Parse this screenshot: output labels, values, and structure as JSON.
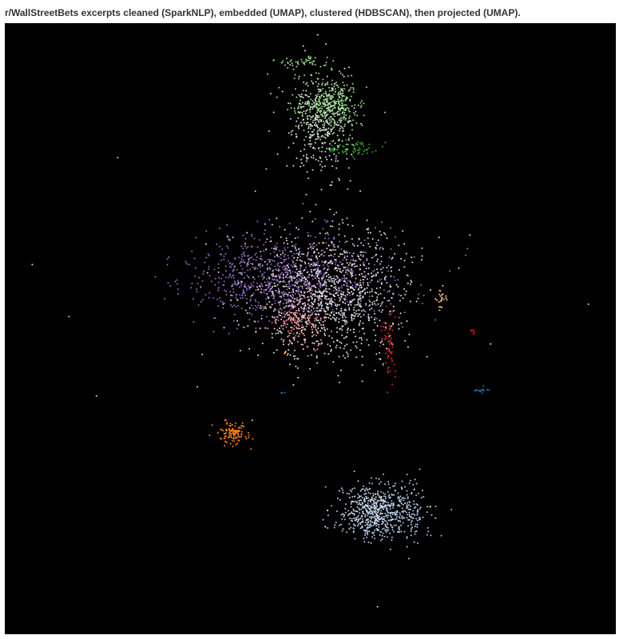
{
  "chart_data": {
    "type": "scatter",
    "title": "r/WallStreetBets excerpts cleaned (SparkNLP), embedded (UMAP), clustered (HDBSCAN), then projected (UMAP).",
    "xlabel": "",
    "ylabel": "",
    "xlim": [
      0,
      100
    ],
    "ylim": [
      0,
      100
    ],
    "grid": false,
    "legend": "none",
    "background": "#000000",
    "colors": {
      "noise": "#dddddd",
      "light_green": "#98df8a",
      "green": "#2ca02c",
      "purple": "#9467bd",
      "pink": "#ff9896",
      "red": "#d62728",
      "light_orange": "#ffbb78",
      "orange": "#ff7f0e",
      "light_blue": "#aec7e8",
      "blue": "#1f77b4"
    },
    "clusters": [
      {
        "id": "light-green-cluster",
        "color": "#98df8a",
        "center": [
          53,
          86.5
        ],
        "spread": [
          2.7,
          2.2
        ],
        "count": 420
      },
      {
        "id": "light-green-arm-cluster",
        "color": "#98df8a",
        "center": [
          48.5,
          93.5
        ],
        "spread": [
          2.4,
          0.6
        ],
        "count": 50
      },
      {
        "id": "green-cluster",
        "color": "#2ca02c",
        "center": [
          56.5,
          79.5
        ],
        "spread": [
          2.2,
          0.7
        ],
        "count": 80
      },
      {
        "id": "purple-cluster",
        "color": "#9467bd",
        "center": [
          47,
          58
        ],
        "spread": [
          8,
          3.6
        ],
        "count": 950
      },
      {
        "id": "pink-cluster",
        "color": "#ff9896",
        "center": [
          48.5,
          51.5
        ],
        "spread": [
          2.2,
          2.2
        ],
        "count": 170
      },
      {
        "id": "red-cluster",
        "color": "#d62728",
        "center": [
          63,
          46.5
        ],
        "spread": [
          0.6,
          2.8
        ],
        "count": 70
      },
      {
        "id": "red-small-cluster",
        "color": "#d62728",
        "center": [
          76.5,
          49.5
        ],
        "spread": [
          0.2,
          0.2
        ],
        "count": 5
      },
      {
        "id": "light-orange-cluster",
        "color": "#ffbb78",
        "center": [
          71.5,
          55
        ],
        "spread": [
          0.3,
          1
        ],
        "count": 20
      },
      {
        "id": "light-orange-small-cluster",
        "color": "#ffbb78",
        "center": [
          46,
          46
        ],
        "spread": [
          0.2,
          0.2
        ],
        "count": 6
      },
      {
        "id": "orange-cluster",
        "color": "#ff7f0e",
        "center": [
          37.5,
          32.8
        ],
        "spread": [
          1.3,
          0.9
        ],
        "count": 120
      },
      {
        "id": "light-blue-cluster",
        "color": "#aec7e8",
        "center": [
          61.5,
          20
        ],
        "spread": [
          3.6,
          2.3
        ],
        "count": 600
      },
      {
        "id": "blue-cluster",
        "color": "#1f77b4",
        "center": [
          78,
          40
        ],
        "spread": [
          0.7,
          0.3
        ],
        "count": 15
      },
      {
        "id": "blue-small-cluster",
        "color": "#1f77b4",
        "center": [
          45.5,
          39.5
        ],
        "spread": [
          0.2,
          0.1
        ],
        "count": 4
      },
      {
        "id": "noise-top-cluster",
        "color": "#dddddd",
        "center": [
          51.5,
          83
        ],
        "spread": [
          2.5,
          4
        ],
        "count": 300
      },
      {
        "id": "noise-center-cluster",
        "color": "#dddddd",
        "center": [
          53,
          56
        ],
        "spread": [
          6.5,
          5
        ],
        "count": 1100
      },
      {
        "id": "noise-bottom-cluster",
        "color": "#dddddd",
        "center": [
          60.5,
          20.5
        ],
        "spread": [
          2.5,
          1.8
        ],
        "count": 120
      }
    ],
    "outliers": [
      [
        18.5,
        78
      ],
      [
        41,
        72.5
      ],
      [
        4.5,
        60.5
      ],
      [
        10.5,
        52
      ],
      [
        95.5,
        54
      ],
      [
        79.5,
        47.5
      ],
      [
        31.5,
        40.5
      ],
      [
        48,
        42
      ],
      [
        15,
        39
      ],
      [
        40.5,
        35
      ],
      [
        61.5,
        45
      ],
      [
        70.5,
        19
      ],
      [
        61,
        4.5
      ],
      [
        66,
        47
      ]
    ]
  }
}
